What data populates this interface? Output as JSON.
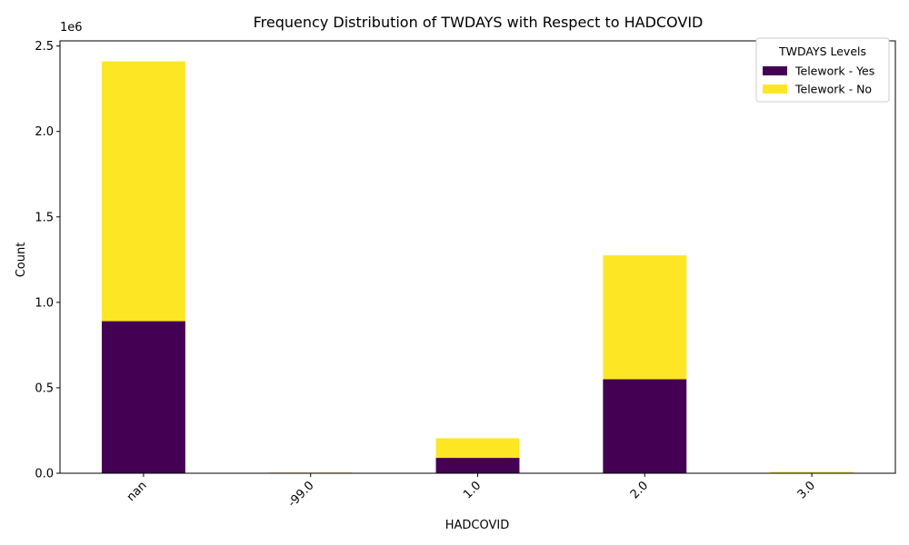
{
  "chart_data": {
    "type": "bar",
    "stacked": true,
    "title": "Frequency Distribution of TWDAYS with Respect to HADCOVID",
    "xlabel": "HADCOVID",
    "ylabel": "Count",
    "y_offset_text": "1e6",
    "categories": [
      "nan",
      "-99.0",
      "1.0",
      "2.0",
      "3.0"
    ],
    "series": [
      {
        "name": "Telework - Yes",
        "color": "#440154",
        "values": [
          890000,
          3000,
          90000,
          550000,
          3000
        ]
      },
      {
        "name": "Telework - No",
        "color": "#fde725",
        "values": [
          1520000,
          1000,
          115000,
          725000,
          5000
        ]
      }
    ],
    "ylim": [
      0,
      2530000
    ],
    "yticks": [
      0,
      500000,
      1000000,
      1500000,
      2000000,
      2500000
    ],
    "ytick_labels": [
      "0.0",
      "0.5",
      "1.0",
      "1.5",
      "2.0",
      "2.5"
    ],
    "xtick_rotation": 45,
    "legend": {
      "title": "TWDAYS Levels",
      "placement": "top-right"
    },
    "grid": false
  }
}
